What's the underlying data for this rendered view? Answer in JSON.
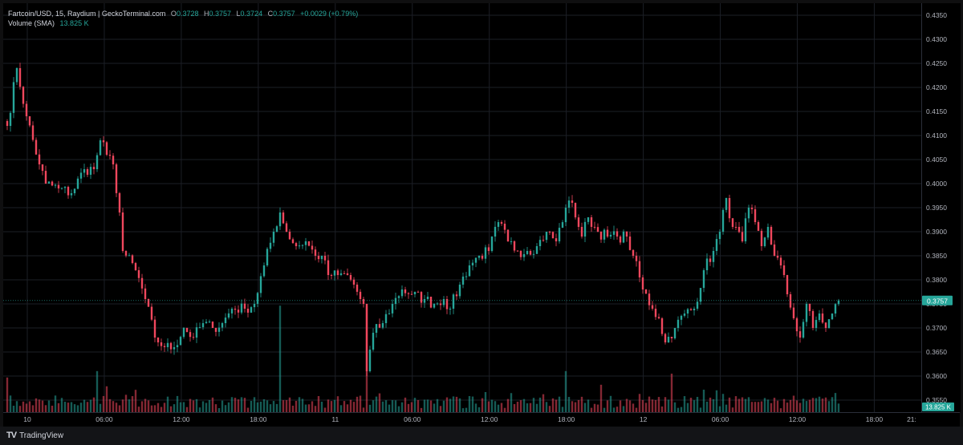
{
  "legend": {
    "symbol": "Fartcoin/USD, 15, Raydium | GeckoTerminal.com",
    "o_label": "O",
    "o": "0.3728",
    "h_label": "H",
    "h": "0.3757",
    "l_label": "L",
    "l": "0.3724",
    "c_label": "C",
    "c": "0.3757",
    "change": "+0.0029 (+0.79%)",
    "volume_label": "Volume (SMA)",
    "volume_value": "13.825 K"
  },
  "brand": {
    "logo": "TV",
    "name": "TradingView"
  },
  "colors": {
    "up": "#26a69a",
    "down": "#f0475d",
    "grid": "#1c1f26",
    "axis_text": "#b2b5be"
  },
  "chart_data": {
    "type": "candlestick",
    "title": "",
    "xlabel": "",
    "ylabel": "",
    "ylim": [
      0.3525,
      0.4375
    ],
    "yticks": [
      "0.4350",
      "0.4300",
      "0.4250",
      "0.4200",
      "0.4150",
      "0.4100",
      "0.4050",
      "0.4000",
      "0.3950",
      "0.3900",
      "0.3850",
      "0.3800",
      "0.3750",
      "0.3700",
      "0.3650",
      "0.3600",
      "0.3550"
    ],
    "xticks": [
      "10",
      "06:00",
      "12:00",
      "18:00",
      "11",
      "06:00",
      "12:00",
      "18:00",
      "12",
      "06:00",
      "12:00",
      "18:00",
      "21:"
    ],
    "last_price_label": "0.3757",
    "last_volume_label": "13.825 K",
    "close_anchors": [
      [
        0,
        0.412
      ],
      [
        3,
        0.424
      ],
      [
        6,
        0.414
      ],
      [
        10,
        0.404
      ],
      [
        12,
        0.4
      ],
      [
        16,
        0.399
      ],
      [
        20,
        0.398
      ],
      [
        24,
        0.403
      ],
      [
        27,
        0.403
      ],
      [
        29,
        0.409
      ],
      [
        31,
        0.406
      ],
      [
        33,
        0.404
      ],
      [
        35,
        0.394
      ],
      [
        36,
        0.386
      ],
      [
        40,
        0.382
      ],
      [
        43,
        0.376
      ],
      [
        46,
        0.368
      ],
      [
        49,
        0.366
      ],
      [
        52,
        0.366
      ],
      [
        55,
        0.37
      ],
      [
        58,
        0.368
      ],
      [
        61,
        0.371
      ],
      [
        64,
        0.37
      ],
      [
        67,
        0.371
      ],
      [
        70,
        0.374
      ],
      [
        74,
        0.374
      ],
      [
        77,
        0.375
      ],
      [
        80,
        0.383
      ],
      [
        83,
        0.39
      ],
      [
        85,
        0.394
      ],
      [
        87,
        0.39
      ],
      [
        90,
        0.387
      ],
      [
        93,
        0.388
      ],
      [
        96,
        0.385
      ],
      [
        98,
        0.385
      ],
      [
        100,
        0.381
      ],
      [
        103,
        0.381
      ],
      [
        106,
        0.381
      ],
      [
        108,
        0.379
      ],
      [
        110,
        0.376
      ],
      [
        111,
        0.375
      ],
      [
        112,
        0.361
      ],
      [
        114,
        0.369
      ],
      [
        117,
        0.371
      ],
      [
        120,
        0.375
      ],
      [
        123,
        0.378
      ],
      [
        126,
        0.377
      ],
      [
        130,
        0.376
      ],
      [
        133,
        0.375
      ],
      [
        136,
        0.376
      ],
      [
        138,
        0.374
      ],
      [
        141,
        0.379
      ],
      [
        144,
        0.383
      ],
      [
        147,
        0.385
      ],
      [
        150,
        0.386
      ],
      [
        153,
        0.392
      ],
      [
        156,
        0.388
      ],
      [
        159,
        0.386
      ],
      [
        162,
        0.386
      ],
      [
        165,
        0.387
      ],
      [
        168,
        0.39
      ],
      [
        171,
        0.388
      ],
      [
        174,
        0.395
      ],
      [
        176,
        0.396
      ],
      [
        179,
        0.389
      ],
      [
        181,
        0.393
      ],
      [
        184,
        0.39
      ],
      [
        187,
        0.389
      ],
      [
        190,
        0.389
      ],
      [
        193,
        0.389
      ],
      [
        195,
        0.385
      ],
      [
        198,
        0.378
      ],
      [
        201,
        0.374
      ],
      [
        203,
        0.372
      ],
      [
        205,
        0.367
      ],
      [
        208,
        0.37
      ],
      [
        211,
        0.373
      ],
      [
        214,
        0.374
      ],
      [
        217,
        0.382
      ],
      [
        220,
        0.386
      ],
      [
        222,
        0.39
      ],
      [
        224,
        0.397
      ],
      [
        226,
        0.391
      ],
      [
        229,
        0.388
      ],
      [
        231,
        0.395
      ],
      [
        233,
        0.392
      ],
      [
        235,
        0.387
      ],
      [
        237,
        0.391
      ],
      [
        239,
        0.385
      ],
      [
        241,
        0.383
      ],
      [
        243,
        0.377
      ],
      [
        245,
        0.372
      ],
      [
        247,
        0.368
      ],
      [
        249,
        0.375
      ],
      [
        251,
        0.37
      ],
      [
        253,
        0.373
      ],
      [
        255,
        0.37
      ],
      [
        257,
        0.373
      ],
      [
        259,
        0.3757
      ]
    ],
    "volume_spikes": [
      [
        85,
        0.83
      ],
      [
        112,
        0.83
      ],
      [
        28,
        0.32
      ],
      [
        174,
        0.32
      ],
      [
        207,
        0.3
      ],
      [
        0,
        0.27
      ]
    ]
  }
}
